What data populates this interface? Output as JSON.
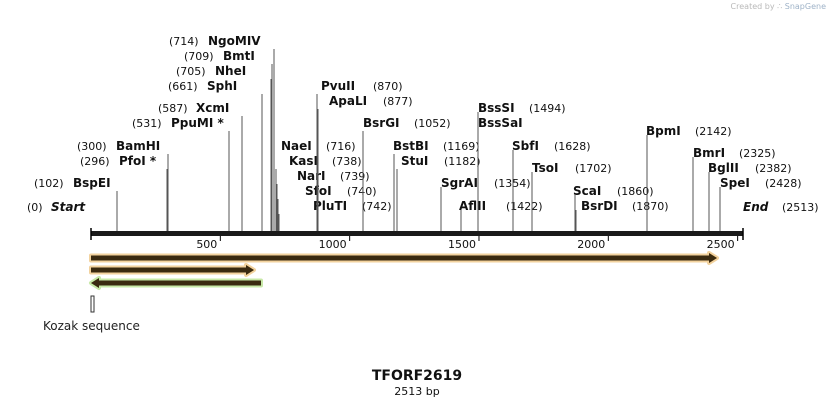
{
  "credit": {
    "prefix": "Created by",
    "brand": "SnapGene"
  },
  "map": {
    "name": "TFORF2619",
    "length_label": "2513 bp",
    "length": 2513,
    "start_label": "Start",
    "end_label": "End",
    "start_pos": "(0)",
    "end_pos": "(2513)",
    "ruler_ticks": [
      "500",
      "1000",
      "1500",
      "2000",
      "2500"
    ],
    "sites": [
      {
        "name": "BspEI",
        "pos": "(102)"
      },
      {
        "name": "PfoI *",
        "pos": "(296)"
      },
      {
        "name": "BamHI",
        "pos": "(300)"
      },
      {
        "name": "PpuMI *",
        "pos": "(531)"
      },
      {
        "name": "XcmI",
        "pos": "(587)"
      },
      {
        "name": "SphI",
        "pos": "(661)"
      },
      {
        "name": "NheI",
        "pos": "(705)"
      },
      {
        "name": "BmtI",
        "pos": "(709)"
      },
      {
        "name": "NgoMIV",
        "pos": "(714)"
      },
      {
        "name": "NaeI",
        "pos": "(716)"
      },
      {
        "name": "KasI",
        "pos": "(738)"
      },
      {
        "name": "NarI",
        "pos": "(739)"
      },
      {
        "name": "SfoI",
        "pos": "(740)"
      },
      {
        "name": "PluTI",
        "pos": "(742)"
      },
      {
        "name": "PvuII",
        "pos": "(870)"
      },
      {
        "name": "ApaLI",
        "pos": "(877)"
      },
      {
        "name": "BsrGI",
        "pos": "(1052)"
      },
      {
        "name": "BstBI",
        "pos": "(1169)"
      },
      {
        "name": "StuI",
        "pos": "(1182)"
      },
      {
        "name": "SgrAI",
        "pos": "(1354)"
      },
      {
        "name": "AflII",
        "pos": "(1422)"
      },
      {
        "name": "BssSI",
        "pos": "(1494)"
      },
      {
        "name": "BssSaI",
        "pos": ""
      },
      {
        "name": "SbfI",
        "pos": "(1628)"
      },
      {
        "name": "TsoI",
        "pos": "(1702)"
      },
      {
        "name": "ScaI",
        "pos": "(1860)"
      },
      {
        "name": "BsrDI",
        "pos": "(1870)"
      },
      {
        "name": "BpmI",
        "pos": "(2142)"
      },
      {
        "name": "BmrI",
        "pos": "(2325)"
      },
      {
        "name": "BglII",
        "pos": "(2382)"
      },
      {
        "name": "SpeI",
        "pos": "(2428)"
      }
    ],
    "features": [
      {
        "name": "orf-forward-long",
        "color": "#e6a63d",
        "direction": "forward"
      },
      {
        "name": "orf-forward-short",
        "color": "#e6a63d",
        "direction": "forward"
      },
      {
        "name": "orf-reverse",
        "color": "#8fd14f",
        "direction": "reverse"
      }
    ],
    "kozak_label": "Kozak sequence"
  }
}
